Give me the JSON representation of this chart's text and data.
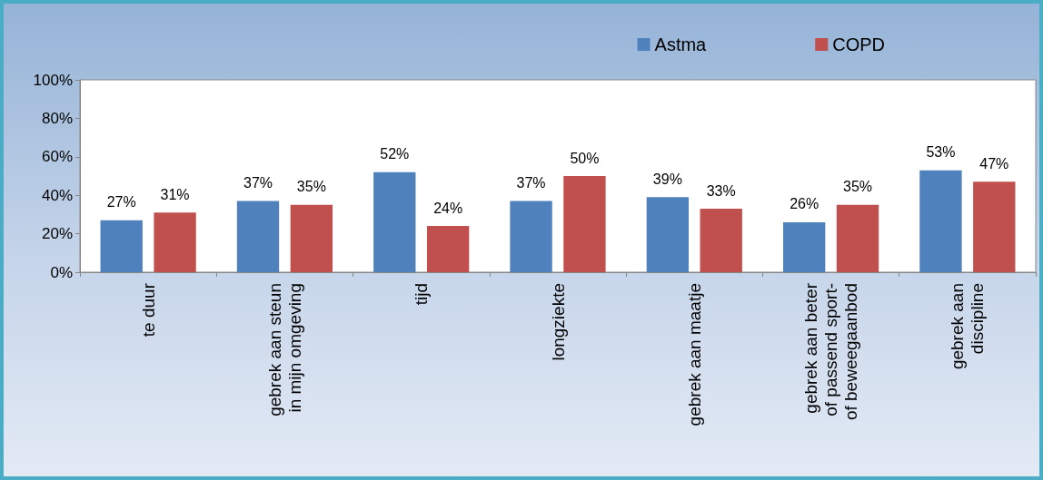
{
  "chart_data": {
    "type": "bar",
    "categories": [
      "te duur",
      "gebrek aan steun\nin mijn omgeving",
      "tijd",
      "longziekte",
      "gebrek aan maatje",
      "gebrek aan beter\nof passend sport-\nof beweegaanbod",
      "gebrek aan\ndiscipline"
    ],
    "series": [
      {
        "name": "Astma",
        "color": "#4f81bd",
        "values": [
          27,
          37,
          52,
          37,
          39,
          26,
          53
        ],
        "value_labels": [
          "27%",
          "37%",
          "52%",
          "37%",
          "39%",
          "26%",
          "53%"
        ]
      },
      {
        "name": "COPD",
        "color": "#c0504d",
        "values": [
          31,
          35,
          24,
          50,
          33,
          35,
          47
        ],
        "value_labels": [
          "31%",
          "35%",
          "24%",
          "50%",
          "33%",
          "35%",
          "47%"
        ]
      }
    ],
    "ylim": [
      0,
      100
    ],
    "yticks": [
      {
        "value": 0,
        "label": "0%"
      },
      {
        "value": 20,
        "label": "20%"
      },
      {
        "value": 40,
        "label": "40%"
      },
      {
        "value": 60,
        "label": "60%"
      },
      {
        "value": 80,
        "label": "80%"
      },
      {
        "value": 100,
        "label": "100%"
      }
    ],
    "grid": false,
    "legend": "top right"
  }
}
